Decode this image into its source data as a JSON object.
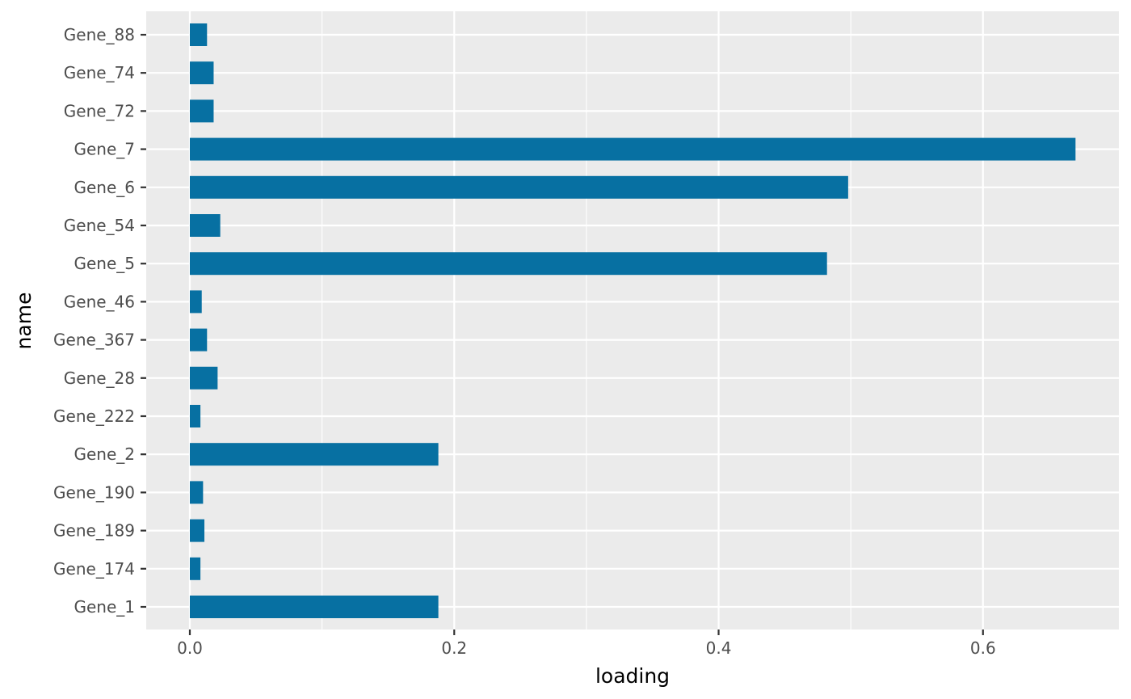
{
  "chart_data": {
    "type": "bar",
    "orientation": "horizontal",
    "title": "",
    "xlabel": "loading",
    "ylabel": "name",
    "xlim": [
      -0.033,
      0.7
    ],
    "xticks": [
      0.0,
      0.2,
      0.4,
      0.6
    ],
    "xtick_labels": [
      "0.0",
      "0.2",
      "0.4",
      "0.6"
    ],
    "grid": true,
    "legend": "none",
    "colors": {
      "bar": "#0770a2",
      "panel": "#ebebeb",
      "grid": "#ffffff",
      "tick_text": "#4d4d4d",
      "tick_mark": "#333333"
    },
    "categories": [
      "Gene_1",
      "Gene_174",
      "Gene_189",
      "Gene_190",
      "Gene_2",
      "Gene_222",
      "Gene_28",
      "Gene_367",
      "Gene_46",
      "Gene_5",
      "Gene_54",
      "Gene_6",
      "Gene_7",
      "Gene_72",
      "Gene_74",
      "Gene_88"
    ],
    "values": [
      0.188,
      0.008,
      0.011,
      0.01,
      0.188,
      0.008,
      0.021,
      0.013,
      0.009,
      0.482,
      0.023,
      0.498,
      0.67,
      0.018,
      0.018,
      0.013
    ]
  }
}
